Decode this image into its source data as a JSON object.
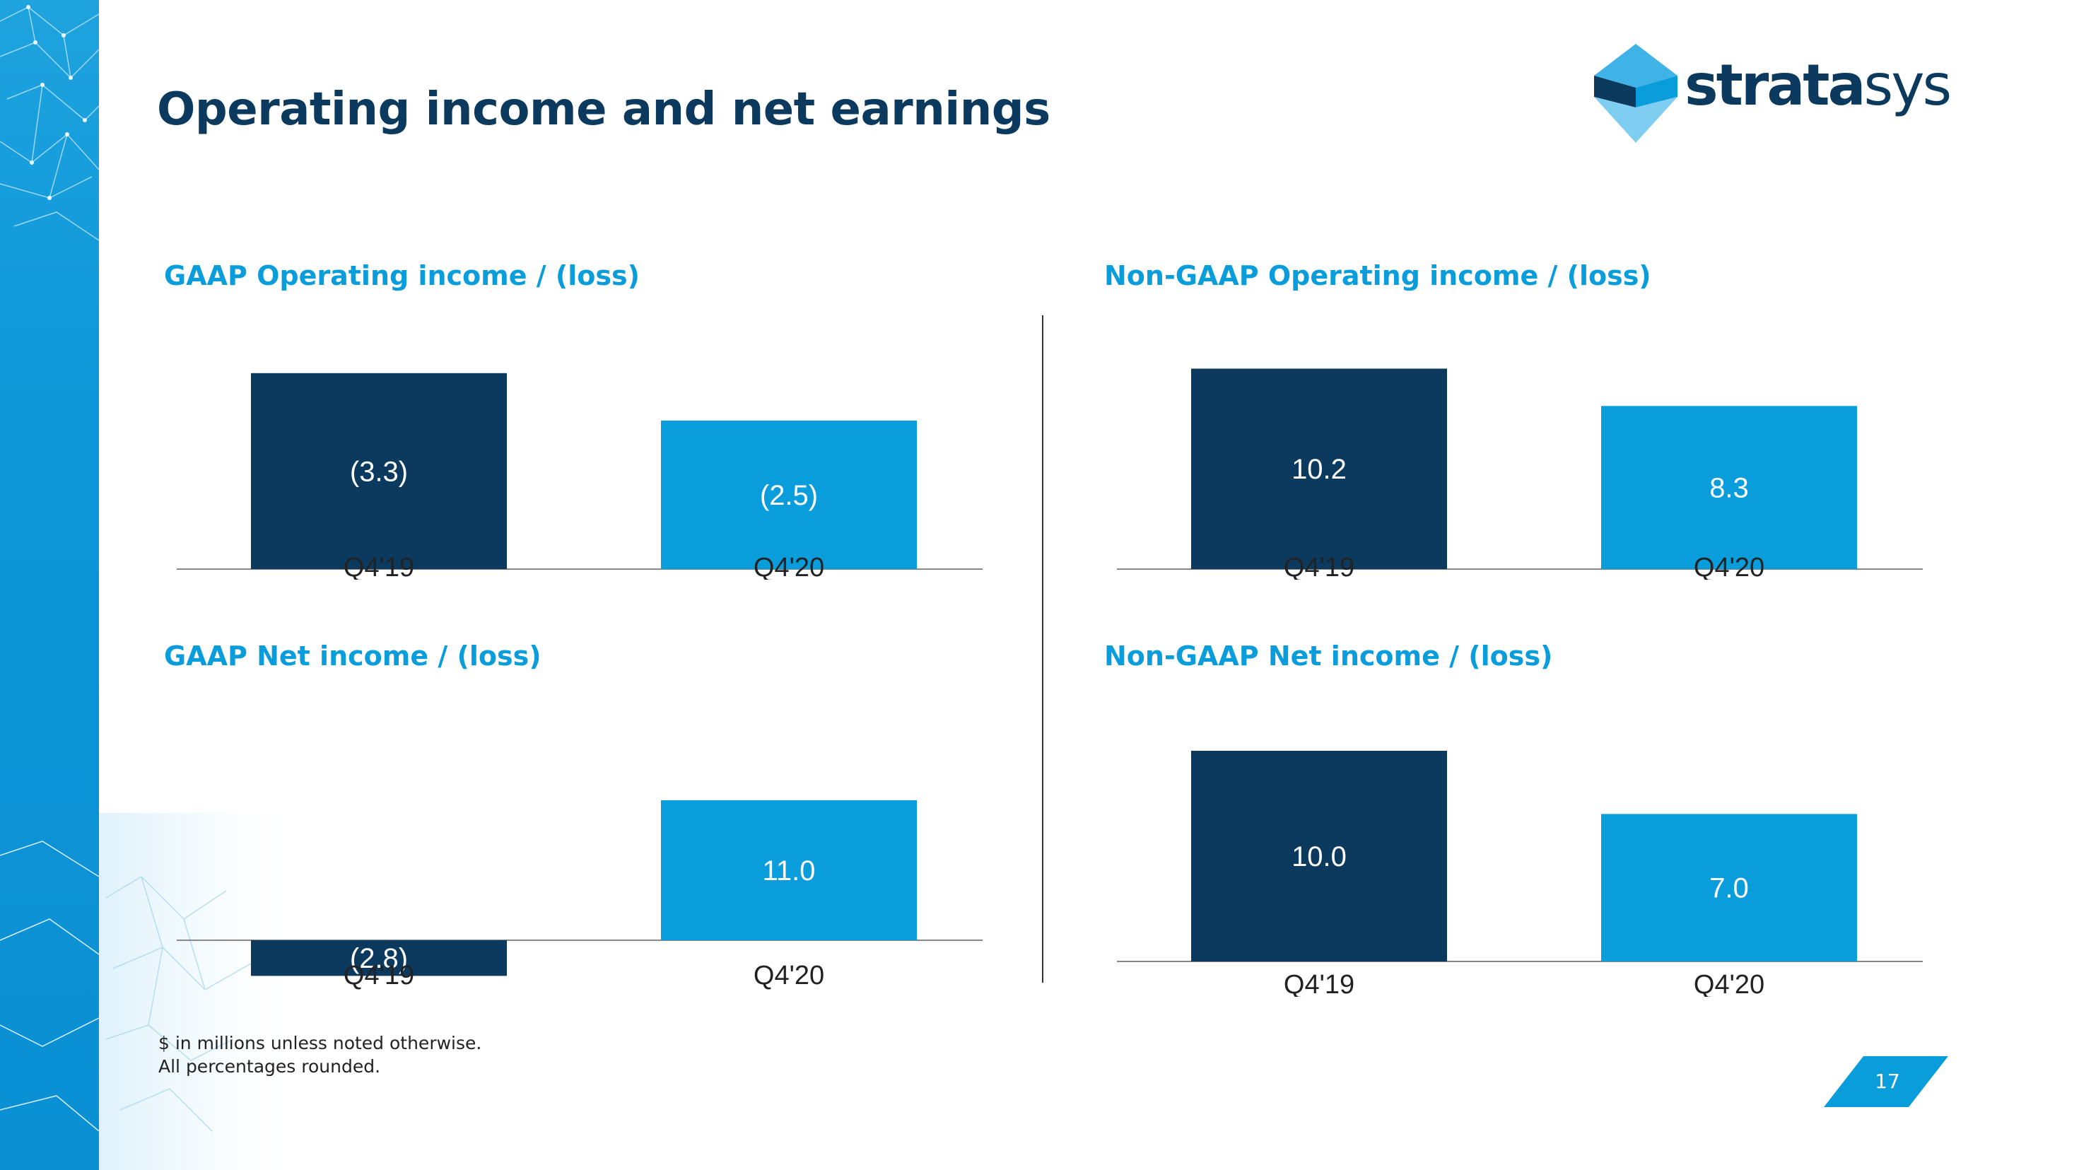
{
  "title": "Operating income and net earnings",
  "logo": {
    "bold_part": "strata",
    "light_part": "sys"
  },
  "colors": {
    "navy": "#0b3a5e",
    "blue": "#0a9ddb",
    "title": "#0b3a5e",
    "accent": "#0a9ddb"
  },
  "chart_data": [
    {
      "type": "bar",
      "title": "GAAP Operating income / (loss)",
      "categories": [
        "Q4'19",
        "Q4'20"
      ],
      "values": [
        -3.3,
        -2.5
      ],
      "labels": [
        "(3.3)",
        "(2.5)"
      ],
      "colors": [
        "#0b3a5e",
        "#0a9ddb"
      ],
      "note": "bars drawn upward despite negative values"
    },
    {
      "type": "bar",
      "title": "Non-GAAP Operating income / (loss)",
      "categories": [
        "Q4'19",
        "Q4'20"
      ],
      "values": [
        10.2,
        8.3
      ],
      "labels": [
        "10.2",
        "8.3"
      ],
      "colors": [
        "#0b3a5e",
        "#0a9ddb"
      ]
    },
    {
      "type": "bar",
      "title": "GAAP Net income / (loss)",
      "categories": [
        "Q4'19",
        "Q4'20"
      ],
      "values": [
        -2.8,
        11.0
      ],
      "labels": [
        "(2.8)",
        "11.0"
      ],
      "colors": [
        "#0b3a5e",
        "#0a9ddb"
      ]
    },
    {
      "type": "bar",
      "title": "Non-GAAP Net income / (loss)",
      "categories": [
        "Q4'19",
        "Q4'20"
      ],
      "values": [
        10.0,
        7.0
      ],
      "labels": [
        "10.0",
        "7.0"
      ],
      "colors": [
        "#0b3a5e",
        "#0a9ddb"
      ]
    }
  ],
  "footnotes": [
    "$ in millions unless noted otherwise.",
    "All percentages rounded."
  ],
  "page_number": "17"
}
